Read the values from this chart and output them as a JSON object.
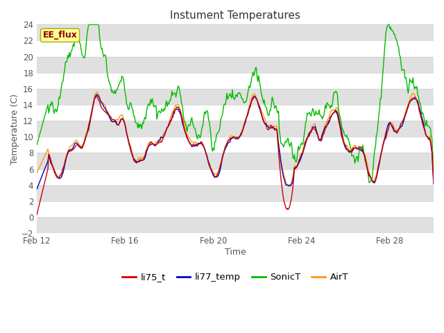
{
  "title": "Instument Temperatures",
  "xlabel": "Time",
  "ylabel": "Temperature (C)",
  "ylim": [
    -2,
    24
  ],
  "yticks": [
    -2,
    0,
    2,
    4,
    6,
    8,
    10,
    12,
    14,
    16,
    18,
    20,
    22,
    24
  ],
  "xtick_positions": [
    12,
    16,
    20,
    24,
    28
  ],
  "xtick_labels": [
    "Feb 12",
    "Feb 16",
    "Feb 20",
    "Feb 24",
    "Feb 28"
  ],
  "background_color": "#ffffff",
  "plot_bg_color": "#ffffff",
  "grid_stripe_color": "#e0e0e0",
  "legend_labels": [
    "li75_t",
    "li77_temp",
    "SonicT",
    "AirT"
  ],
  "legend_colors": [
    "#cc0000",
    "#0000cc",
    "#00bb00",
    "#ff9900"
  ],
  "watermark_text": "EE_flux",
  "watermark_fg": "#880000",
  "watermark_bg": "#ffff99",
  "date_start": 12,
  "date_end": 30,
  "n_points": 500
}
